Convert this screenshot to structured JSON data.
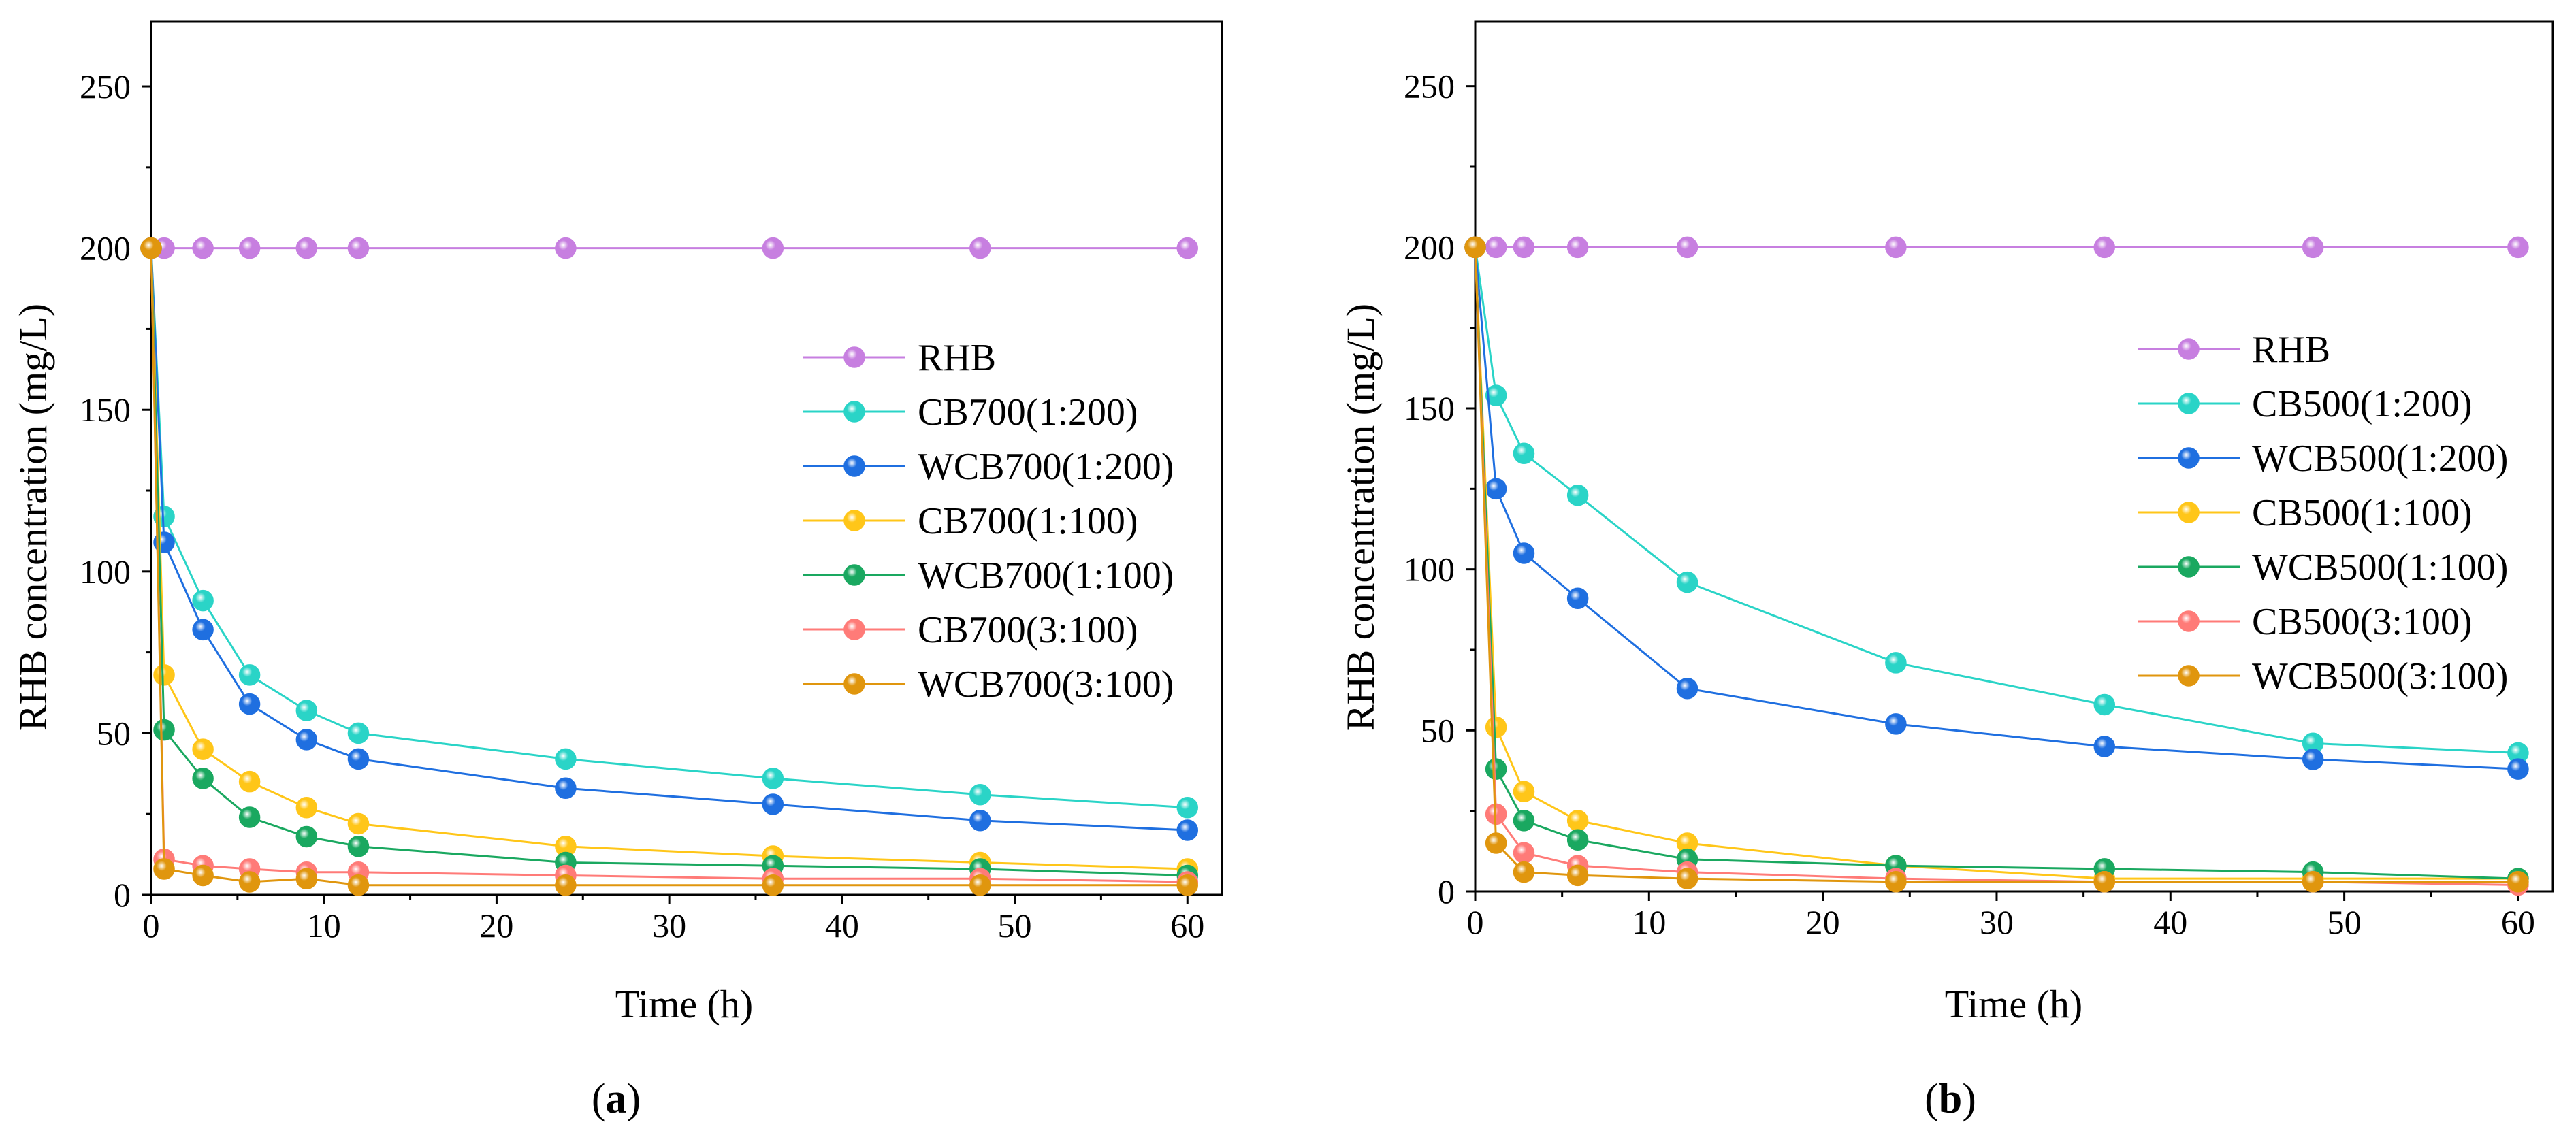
{
  "chart_data": [
    {
      "type": "line",
      "panel": "(a)",
      "panel_letter": "a",
      "title": "",
      "xlabel": "Time (h)",
      "ylabel": "RHB concentration (mg/L)",
      "xlim": [
        0,
        62
      ],
      "ylim": [
        0,
        270
      ],
      "xticks": [
        0,
        10,
        20,
        30,
        40,
        50,
        60
      ],
      "yticks": [
        0,
        50,
        100,
        150,
        200,
        250
      ],
      "legend": "center-right",
      "series": [
        {
          "name": "RHB",
          "color": "#c77fe0",
          "x": [
            0,
            0.75,
            3,
            5.7,
            9,
            12,
            24,
            36,
            48,
            60
          ],
          "y": [
            200,
            200,
            200,
            200,
            200,
            200,
            200,
            200,
            200,
            200
          ]
        },
        {
          "name": "CB700(1:200)",
          "color": "#2ad4c7",
          "x": [
            0,
            0.75,
            3,
            5.7,
            9,
            12,
            24,
            36,
            48,
            60
          ],
          "y": [
            200,
            117,
            91,
            68,
            57,
            50,
            42,
            36,
            31,
            27
          ]
        },
        {
          "name": "WCB700(1:200)",
          "color": "#1f6fe0",
          "x": [
            0,
            0.75,
            3,
            5.7,
            9,
            12,
            24,
            36,
            48,
            60
          ],
          "y": [
            200,
            109,
            82,
            59,
            48,
            42,
            33,
            28,
            23,
            20
          ]
        },
        {
          "name": "CB700(1:100)",
          "color": "#ffc619",
          "x": [
            0,
            0.75,
            3,
            5.7,
            9,
            12,
            24,
            36,
            48,
            60
          ],
          "y": [
            200,
            68,
            45,
            35,
            27,
            22,
            15,
            12,
            10,
            8
          ]
        },
        {
          "name": "WCB700(1:100)",
          "color": "#1aa860",
          "x": [
            0,
            0.75,
            3,
            5.7,
            9,
            12,
            24,
            36,
            48,
            60
          ],
          "y": [
            200,
            51,
            36,
            24,
            18,
            15,
            10,
            9,
            8,
            6
          ]
        },
        {
          "name": "CB700(3:100)",
          "color": "#ff7b78",
          "x": [
            0,
            0.75,
            3,
            5.7,
            9,
            12,
            24,
            36,
            48,
            60
          ],
          "y": [
            200,
            11,
            9,
            8,
            7,
            7,
            6,
            5,
            5,
            4
          ]
        },
        {
          "name": "WCB700(3:100)",
          "color": "#e0960e",
          "x": [
            0,
            0.75,
            3,
            5.7,
            9,
            12,
            24,
            36,
            48,
            60
          ],
          "y": [
            200,
            8,
            6,
            4,
            5,
            3,
            3,
            3,
            3,
            3
          ]
        }
      ]
    },
    {
      "type": "line",
      "panel": "(b)",
      "panel_letter": "b",
      "title": "",
      "xlabel": "Time (h)",
      "ylabel": "RHB concentration (mg/L)",
      "xlim": [
        0,
        62
      ],
      "ylim": [
        0,
        270
      ],
      "xticks": [
        0,
        10,
        20,
        30,
        40,
        50,
        60
      ],
      "yticks": [
        0,
        50,
        100,
        150,
        200,
        250
      ],
      "legend": "center-right",
      "series": [
        {
          "name": "RHB",
          "color": "#c77fe0",
          "x": [
            0,
            1.2,
            2.8,
            5.9,
            12.2,
            24.2,
            36.2,
            48.2,
            60
          ],
          "y": [
            200,
            200,
            200,
            200,
            200,
            200,
            200,
            200,
            200
          ]
        },
        {
          "name": "CB500(1:200)",
          "color": "#2ad4c7",
          "x": [
            0,
            1.2,
            2.8,
            5.9,
            12.2,
            24.2,
            36.2,
            48.2,
            60
          ],
          "y": [
            200,
            154,
            136,
            123,
            96,
            71,
            58,
            46,
            43
          ]
        },
        {
          "name": "WCB500(1:200)",
          "color": "#1f6fe0",
          "x": [
            0,
            1.2,
            2.8,
            5.9,
            12.2,
            24.2,
            36.2,
            48.2,
            60
          ],
          "y": [
            200,
            125,
            105,
            91,
            63,
            52,
            45,
            41,
            38
          ]
        },
        {
          "name": "CB500(1:100)",
          "color": "#ffc619",
          "x": [
            0,
            1.2,
            2.8,
            5.9,
            12.2,
            24.2,
            36.2,
            48.2,
            60
          ],
          "y": [
            200,
            51,
            31,
            22,
            15,
            8,
            4,
            4,
            4
          ]
        },
        {
          "name": "WCB500(1:100)",
          "color": "#1aa860",
          "x": [
            0,
            1.2,
            2.8,
            5.9,
            12.2,
            24.2,
            36.2,
            48.2,
            60
          ],
          "y": [
            200,
            38,
            22,
            16,
            10,
            8,
            7,
            6,
            4
          ]
        },
        {
          "name": "CB500(3:100)",
          "color": "#ff7b78",
          "x": [
            0,
            1.2,
            2.8,
            5.9,
            12.2,
            24.2,
            36.2,
            48.2,
            60
          ],
          "y": [
            200,
            24,
            12,
            8,
            6,
            4,
            3,
            3,
            2
          ]
        },
        {
          "name": "WCB500(3:100)",
          "color": "#e0960e",
          "x": [
            0,
            1.2,
            2.8,
            5.9,
            12.2,
            24.2,
            36.2,
            48.2,
            60
          ],
          "y": [
            200,
            15,
            6,
            5,
            4,
            3,
            3,
            3,
            3
          ]
        }
      ]
    }
  ]
}
